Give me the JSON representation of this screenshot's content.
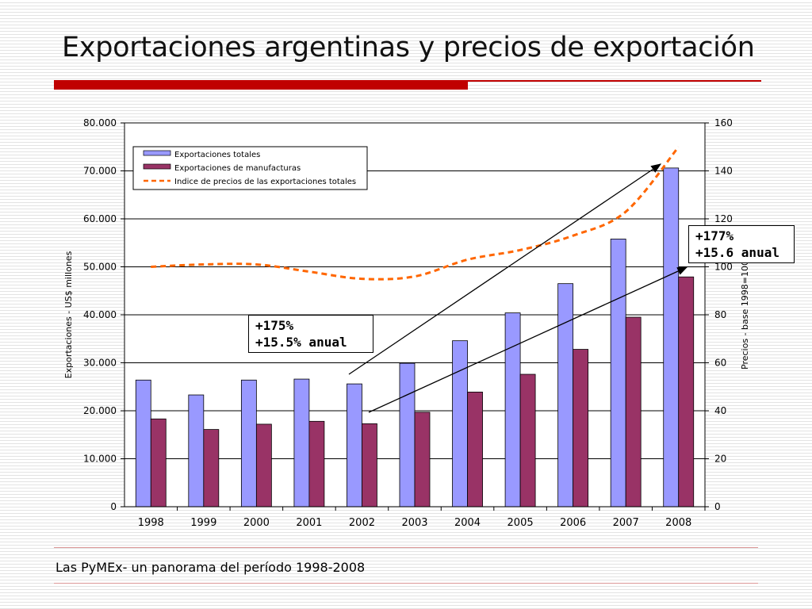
{
  "slide": {
    "title": "Exportaciones argentinas y precios de exportación",
    "footer": "Las PyMEx- un panorama del período 1998-2008",
    "accent_color": "#c00000"
  },
  "chart_data": {
    "type": "bar",
    "categories": [
      "1998",
      "1999",
      "2000",
      "2001",
      "2002",
      "2003",
      "2004",
      "2005",
      "2006",
      "2007",
      "2008"
    ],
    "series": [
      {
        "name": "Exportaciones totales",
        "type": "bar",
        "axis": "left",
        "color": "#9999ff",
        "values": [
          26400,
          23300,
          26400,
          26600,
          25600,
          29900,
          34600,
          40400,
          46500,
          55800,
          70600
        ]
      },
      {
        "name": "Exportaciones de manufacturas",
        "type": "bar",
        "axis": "left",
        "color": "#993366",
        "values": [
          18300,
          16100,
          17200,
          17800,
          17300,
          19700,
          23900,
          27600,
          32800,
          39500,
          47900
        ]
      },
      {
        "name": "Indice de precios de las exportaciones totales",
        "type": "line",
        "axis": "right",
        "color": "#ff6600",
        "style": "dashed",
        "values": [
          100,
          101,
          101,
          98,
          95,
          96,
          103,
          107,
          113,
          123,
          150
        ]
      }
    ],
    "ylabel": "Exportaciones - US$ millones",
    "y2label": "Precios - base 1998=100",
    "ylim": [
      0,
      80000
    ],
    "y2lim": [
      0,
      160
    ],
    "yticks": [
      "0",
      "10.000",
      "20.000",
      "30.000",
      "40.000",
      "50.000",
      "60.000",
      "70.000",
      "80.000"
    ],
    "y2ticks": [
      "0",
      "20",
      "40",
      "60",
      "80",
      "100",
      "120",
      "140",
      "160"
    ],
    "grid": true,
    "legend_position": "top-left",
    "annotations": [
      {
        "id": "left",
        "line1": "+175%",
        "line2": "+15.5% anual"
      },
      {
        "id": "right",
        "line1": "+177%",
        "line2": "+15.6 anual"
      }
    ]
  }
}
